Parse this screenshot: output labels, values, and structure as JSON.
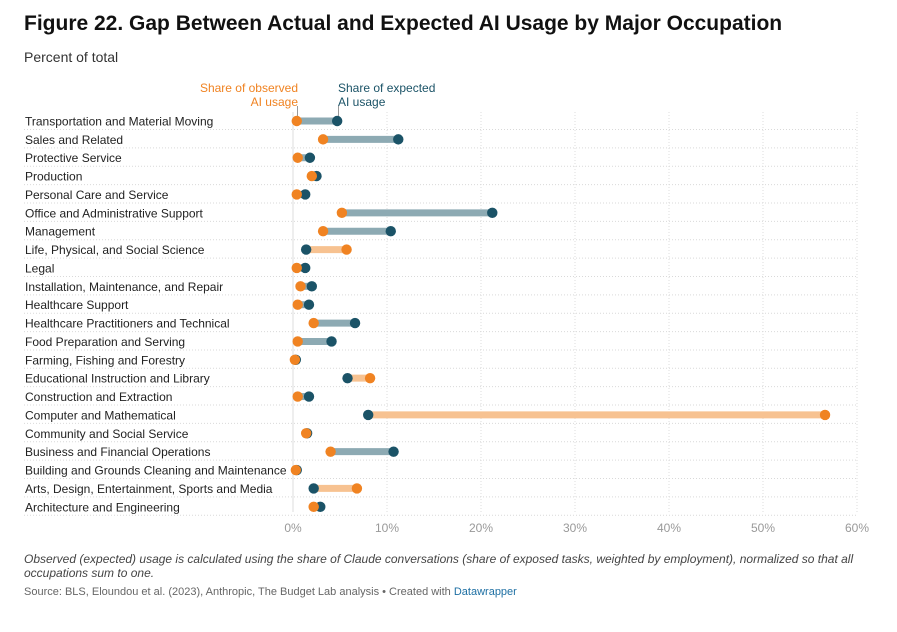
{
  "title": "Figure 22. Gap Between Actual and Expected AI Usage by Major Occupation",
  "subtitle": "Percent of total",
  "legend": {
    "observed_line1": "Share of observed",
    "observed_line2": "AI usage",
    "expected_line1": "Share of expected",
    "expected_line2": "AI usage"
  },
  "colors": {
    "observed": "#f08322",
    "expected": "#1b5367",
    "bar_expected_higher": "#8daab3",
    "bar_observed_higher": "#f7c291",
    "grid": "#dddddd",
    "axis_text": "#999999"
  },
  "note": "Observed (expected) usage is calculated using the share of Claude conversations (share of exposed tasks, weighted by employment), normalized so that all occupations sum to one.",
  "source_prefix": "Source: BLS, Eloundou et al. (2023), Anthropic, The Budget Lab analysis • Created with ",
  "source_link": "Datawrapper",
  "chart_data": {
    "type": "dot-range",
    "title": "Figure 22. Gap Between Actual and Expected AI Usage by Major Occupation",
    "subtitle": "Percent of total",
    "xlim": [
      0,
      60
    ],
    "xticks": [
      0,
      10,
      20,
      30,
      40,
      50,
      60
    ],
    "xtick_labels": [
      "0%",
      "10%",
      "20%",
      "30%",
      "40%",
      "50%",
      "60%"
    ],
    "grid": true,
    "categories": [
      "Transportation and Material Moving",
      "Sales and Related",
      "Protective Service",
      "Production",
      "Personal Care and Service",
      "Office and Administrative Support",
      "Management",
      "Life, Physical, and Social Science",
      "Legal",
      "Installation, Maintenance, and Repair",
      "Healthcare Support",
      "Healthcare Practitioners and Technical",
      "Food Preparation and Serving",
      "Farming, Fishing and Forestry",
      "Educational Instruction and Library",
      "Construction and Extraction",
      "Computer and Mathematical",
      "Community and Social Service",
      "Business and Financial Operations",
      "Building and Grounds Cleaning and Maintenance",
      "Arts, Design, Entertainment, Sports and Media",
      "Architecture and Engineering"
    ],
    "series": [
      {
        "name": "Share of observed AI usage",
        "values": [
          0.4,
          3.2,
          0.5,
          2.0,
          0.4,
          5.2,
          3.2,
          5.7,
          0.4,
          0.8,
          0.5,
          2.2,
          0.5,
          0.2,
          8.2,
          0.5,
          56.6,
          1.4,
          4.0,
          0.3,
          6.8,
          2.2
        ]
      },
      {
        "name": "Share of expected AI usage",
        "values": [
          4.7,
          11.2,
          1.8,
          2.5,
          1.3,
          21.2,
          10.4,
          1.4,
          1.3,
          2.0,
          1.7,
          6.6,
          4.1,
          0.3,
          5.8,
          1.7,
          8.0,
          1.5,
          10.7,
          0.4,
          2.2,
          2.9
        ]
      }
    ]
  }
}
